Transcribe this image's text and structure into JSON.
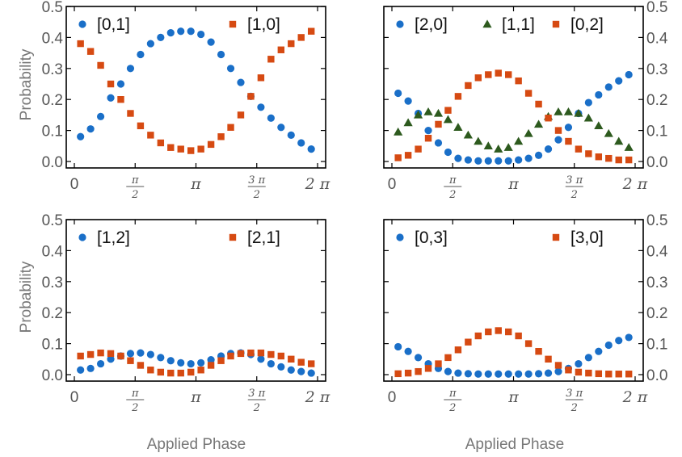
{
  "colors": {
    "blue": "#1a6fc8",
    "red": "#d64a12",
    "green": "#2d5a1e",
    "axis": "#000000"
  },
  "tick_labels": {
    "x": {
      "zero": "0",
      "half_pi_num": "π",
      "half_pi_den": "2",
      "pi": "π",
      "three_half_pi_num": "3 π",
      "three_half_pi_den": "2",
      "two_pi": "2 π"
    },
    "y": [
      "0.0",
      "0.1",
      "0.2",
      "0.3",
      "0.4",
      "0.5"
    ]
  },
  "chart_data": [
    {
      "type": "scatter",
      "ylabel": "Probability",
      "xlabel": "",
      "xlim": [
        0,
        6.2832
      ],
      "ylim": [
        0,
        0.5
      ],
      "y_axis_side": "left",
      "legend_placement": "top",
      "series": [
        {
          "name": "[0,1]",
          "marker": "circle",
          "color": "#1a6fc8",
          "x": [
            0.16,
            0.42,
            0.68,
            0.94,
            1.2,
            1.45,
            1.71,
            1.97,
            2.23,
            2.49,
            2.75,
            3.01,
            3.27,
            3.53,
            3.79,
            4.04,
            4.3,
            4.56,
            4.82,
            5.08,
            5.34,
            5.6,
            5.86,
            6.12
          ],
          "values": [
            0.08,
            0.105,
            0.145,
            0.205,
            0.25,
            0.3,
            0.345,
            0.38,
            0.4,
            0.415,
            0.42,
            0.42,
            0.41,
            0.385,
            0.345,
            0.3,
            0.255,
            0.21,
            0.175,
            0.14,
            0.11,
            0.085,
            0.06,
            0.04
          ]
        },
        {
          "name": "[1,0]",
          "marker": "square",
          "color": "#d64a12",
          "x": [
            0.16,
            0.42,
            0.68,
            0.94,
            1.2,
            1.45,
            1.71,
            1.97,
            2.23,
            2.49,
            2.75,
            3.01,
            3.27,
            3.53,
            3.79,
            4.04,
            4.3,
            4.56,
            4.82,
            5.08,
            5.34,
            5.6,
            5.86,
            6.12
          ],
          "values": [
            0.38,
            0.355,
            0.31,
            0.25,
            0.2,
            0.155,
            0.115,
            0.085,
            0.06,
            0.045,
            0.04,
            0.035,
            0.04,
            0.055,
            0.08,
            0.11,
            0.15,
            0.21,
            0.27,
            0.33,
            0.36,
            0.38,
            0.4,
            0.42
          ]
        }
      ]
    },
    {
      "type": "scatter",
      "ylabel": "",
      "xlabel": "",
      "xlim": [
        0,
        6.2832
      ],
      "ylim": [
        0,
        0.5
      ],
      "y_axis_side": "right",
      "legend_placement": "top",
      "series": [
        {
          "name": "[2,0]",
          "marker": "circle",
          "color": "#1a6fc8",
          "x": [
            0.16,
            0.42,
            0.68,
            0.94,
            1.2,
            1.45,
            1.71,
            1.97,
            2.23,
            2.49,
            2.75,
            3.01,
            3.27,
            3.53,
            3.79,
            4.04,
            4.3,
            4.56,
            4.82,
            5.08,
            5.34,
            5.6,
            5.86,
            6.12
          ],
          "values": [
            0.22,
            0.195,
            0.155,
            0.1,
            0.06,
            0.03,
            0.01,
            0.005,
            0.002,
            0.002,
            0.002,
            0.002,
            0.005,
            0.01,
            0.02,
            0.04,
            0.07,
            0.11,
            0.155,
            0.19,
            0.215,
            0.24,
            0.26,
            0.28
          ]
        },
        {
          "name": "[1,1]",
          "marker": "triangle",
          "color": "#2d5a1e",
          "x": [
            0.16,
            0.42,
            0.68,
            0.94,
            1.2,
            1.45,
            1.71,
            1.97,
            2.23,
            2.49,
            2.75,
            3.01,
            3.27,
            3.53,
            3.79,
            4.04,
            4.3,
            4.56,
            4.82,
            5.08,
            5.34,
            5.6,
            5.86,
            6.12
          ],
          "values": [
            0.095,
            0.125,
            0.15,
            0.16,
            0.155,
            0.135,
            0.11,
            0.085,
            0.065,
            0.05,
            0.04,
            0.045,
            0.065,
            0.09,
            0.12,
            0.145,
            0.16,
            0.16,
            0.155,
            0.14,
            0.115,
            0.09,
            0.065,
            0.045
          ]
        },
        {
          "name": "[0,2]",
          "marker": "square",
          "color": "#d64a12",
          "x": [
            0.16,
            0.42,
            0.68,
            0.94,
            1.2,
            1.45,
            1.71,
            1.97,
            2.23,
            2.49,
            2.75,
            3.01,
            3.27,
            3.53,
            3.79,
            4.04,
            4.3,
            4.56,
            4.82,
            5.08,
            5.34,
            5.6,
            5.86,
            6.12
          ],
          "values": [
            0.012,
            0.02,
            0.04,
            0.075,
            0.12,
            0.165,
            0.21,
            0.245,
            0.27,
            0.28,
            0.285,
            0.28,
            0.26,
            0.22,
            0.185,
            0.14,
            0.1,
            0.065,
            0.04,
            0.025,
            0.015,
            0.01,
            0.005,
            0.005
          ]
        }
      ]
    },
    {
      "type": "scatter",
      "ylabel": "Probability",
      "xlabel": "Applied Phase",
      "xlim": [
        0,
        6.2832
      ],
      "ylim": [
        0,
        0.5
      ],
      "y_axis_side": "left",
      "legend_placement": "top",
      "series": [
        {
          "name": "[1,2]",
          "marker": "circle",
          "color": "#1a6fc8",
          "x": [
            0.16,
            0.42,
            0.68,
            0.94,
            1.2,
            1.45,
            1.71,
            1.97,
            2.23,
            2.49,
            2.75,
            3.01,
            3.27,
            3.53,
            3.79,
            4.04,
            4.3,
            4.56,
            4.82,
            5.08,
            5.34,
            5.6,
            5.86,
            6.12
          ],
          "values": [
            0.015,
            0.02,
            0.035,
            0.05,
            0.06,
            0.068,
            0.07,
            0.065,
            0.055,
            0.045,
            0.038,
            0.035,
            0.038,
            0.048,
            0.06,
            0.068,
            0.07,
            0.065,
            0.05,
            0.035,
            0.025,
            0.015,
            0.01,
            0.005
          ]
        },
        {
          "name": "[2,1]",
          "marker": "square",
          "color": "#d64a12",
          "x": [
            0.16,
            0.42,
            0.68,
            0.94,
            1.2,
            1.45,
            1.71,
            1.97,
            2.23,
            2.49,
            2.75,
            3.01,
            3.27,
            3.53,
            3.79,
            4.04,
            4.3,
            4.56,
            4.82,
            5.08,
            5.34,
            5.6,
            5.86,
            6.12
          ],
          "values": [
            0.06,
            0.065,
            0.07,
            0.068,
            0.06,
            0.045,
            0.03,
            0.015,
            0.008,
            0.005,
            0.005,
            0.008,
            0.015,
            0.03,
            0.045,
            0.06,
            0.068,
            0.07,
            0.07,
            0.065,
            0.06,
            0.05,
            0.04,
            0.035
          ]
        }
      ]
    },
    {
      "type": "scatter",
      "ylabel": "",
      "xlabel": "Applied Phase",
      "xlim": [
        0,
        6.2832
      ],
      "ylim": [
        0,
        0.5
      ],
      "y_axis_side": "right",
      "legend_placement": "top",
      "series": [
        {
          "name": "[0,3]",
          "marker": "circle",
          "color": "#1a6fc8",
          "x": [
            0.16,
            0.42,
            0.68,
            0.94,
            1.2,
            1.45,
            1.71,
            1.97,
            2.23,
            2.49,
            2.75,
            3.01,
            3.27,
            3.53,
            3.79,
            4.04,
            4.3,
            4.56,
            4.82,
            5.08,
            5.34,
            5.6,
            5.86,
            6.12
          ],
          "values": [
            0.09,
            0.075,
            0.055,
            0.035,
            0.02,
            0.01,
            0.005,
            0.003,
            0.002,
            0.002,
            0.002,
            0.002,
            0.002,
            0.002,
            0.003,
            0.005,
            0.01,
            0.02,
            0.035,
            0.055,
            0.075,
            0.095,
            0.11,
            0.12
          ]
        },
        {
          "name": "[3,0]",
          "marker": "square",
          "color": "#d64a12",
          "x": [
            0.16,
            0.42,
            0.68,
            0.94,
            1.2,
            1.45,
            1.71,
            1.97,
            2.23,
            2.49,
            2.75,
            3.01,
            3.27,
            3.53,
            3.79,
            4.04,
            4.3,
            4.56,
            4.82,
            5.08,
            5.34,
            5.6,
            5.86,
            6.12
          ],
          "values": [
            0.003,
            0.005,
            0.01,
            0.02,
            0.035,
            0.055,
            0.08,
            0.105,
            0.125,
            0.138,
            0.142,
            0.138,
            0.125,
            0.1,
            0.075,
            0.05,
            0.03,
            0.015,
            0.008,
            0.005,
            0.003,
            0.002,
            0.002,
            0.002
          ]
        }
      ]
    }
  ]
}
